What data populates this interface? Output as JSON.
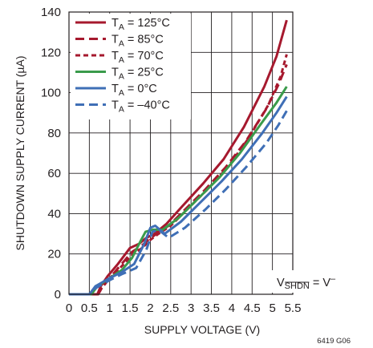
{
  "chart_data": {
    "type": "line",
    "title": "",
    "xlabel": "SUPPLY VOLTAGE (V)",
    "ylabel": "SHUTDOWN SUPPLY CURRENT (µA)",
    "xlim": [
      0,
      5.5
    ],
    "ylim": [
      0,
      140
    ],
    "x_ticks": [
      "0",
      "0.5",
      "1",
      "1.5",
      "2",
      "2.5",
      "3",
      "3.5",
      "4",
      "4.5",
      "5",
      "5.5"
    ],
    "y_ticks": [
      "0",
      "20",
      "40",
      "60",
      "80",
      "100",
      "120",
      "140"
    ],
    "grid": true,
    "legend_position": "top-left",
    "annotation": {
      "prefix": "V",
      "sub": "SHDN",
      "suffix": " = V",
      "sup": "–"
    },
    "figure_id": "6419 G06",
    "series": [
      {
        "sub": "A",
        "label": " = 125°C",
        "color": "#a6192e",
        "dash": "solid",
        "x": [
          0,
          0.7,
          0.78,
          0.95,
          1.2,
          1.5,
          1.72,
          1.9,
          2.1,
          2.4,
          2.8,
          3.3,
          3.8,
          4.3,
          4.8,
          5.1,
          5.35
        ],
        "y": [
          0,
          0,
          4,
          9,
          15,
          23,
          25,
          28,
          30,
          35,
          44,
          55,
          67,
          83,
          103,
          118,
          136
        ]
      },
      {
        "sub": "A",
        "label": " = 85°C",
        "color": "#a6192e",
        "dash": "long",
        "x": [
          0,
          0.72,
          0.8,
          1.0,
          1.25,
          1.55,
          1.78,
          1.95,
          2.15,
          2.45,
          2.85,
          3.35,
          3.85,
          4.35,
          4.85,
          5.15,
          5.35
        ],
        "y": [
          0,
          0,
          3,
          8,
          14,
          21,
          24,
          27,
          30,
          34,
          42,
          52,
          63,
          76,
          92,
          104,
          114
        ]
      },
      {
        "sub": "A",
        "label": " = 70°C",
        "color": "#a6192e",
        "dash": "short",
        "x": [
          0,
          0.72,
          0.8,
          1.0,
          1.3,
          1.58,
          1.8,
          2.0,
          2.2,
          2.5,
          2.9,
          3.4,
          3.9,
          4.4,
          4.9,
          5.2,
          5.35
        ],
        "y": [
          0,
          0,
          3,
          8,
          14,
          20,
          23,
          27,
          30,
          34,
          42,
          52,
          63,
          77,
          94,
          108,
          119
        ]
      },
      {
        "sub": "A",
        "label": " = 25°C",
        "color": "#3a9b4b",
        "dash": "solid",
        "x": [
          0,
          0.55,
          0.7,
          1.0,
          1.3,
          1.55,
          1.75,
          1.88,
          2.05,
          2.3,
          2.7,
          3.2,
          3.7,
          4.2,
          4.7,
          5.1,
          5.35
        ],
        "y": [
          0,
          0,
          4,
          8,
          12,
          18,
          26,
          31,
          32,
          32,
          38,
          48,
          58,
          70,
          84,
          95,
          103
        ]
      },
      {
        "sub": "A",
        "label": " = 0°C",
        "color": "#3f6fb6",
        "dash": "solid",
        "x": [
          0,
          0.5,
          0.65,
          1.0,
          1.3,
          1.6,
          1.85,
          2.0,
          2.12,
          2.35,
          2.75,
          3.25,
          3.75,
          4.25,
          4.75,
          5.1,
          5.35
        ],
        "y": [
          0,
          0,
          4,
          8,
          11,
          15,
          25,
          33,
          34,
          30,
          36,
          46,
          56,
          67,
          80,
          90,
          98
        ]
      },
      {
        "sub": "A",
        "label": " = –40°C",
        "color": "#3f6fb6",
        "dash": "long",
        "x": [
          0,
          0.5,
          0.65,
          1.0,
          1.3,
          1.65,
          1.9,
          2.05,
          2.2,
          2.45,
          2.85,
          3.35,
          3.85,
          4.35,
          4.85,
          5.15,
          5.35
        ],
        "y": [
          0,
          0,
          3,
          7,
          10,
          13,
          22,
          31,
          32,
          28,
          33,
          42,
          52,
          63,
          75,
          84,
          91
        ]
      }
    ]
  }
}
